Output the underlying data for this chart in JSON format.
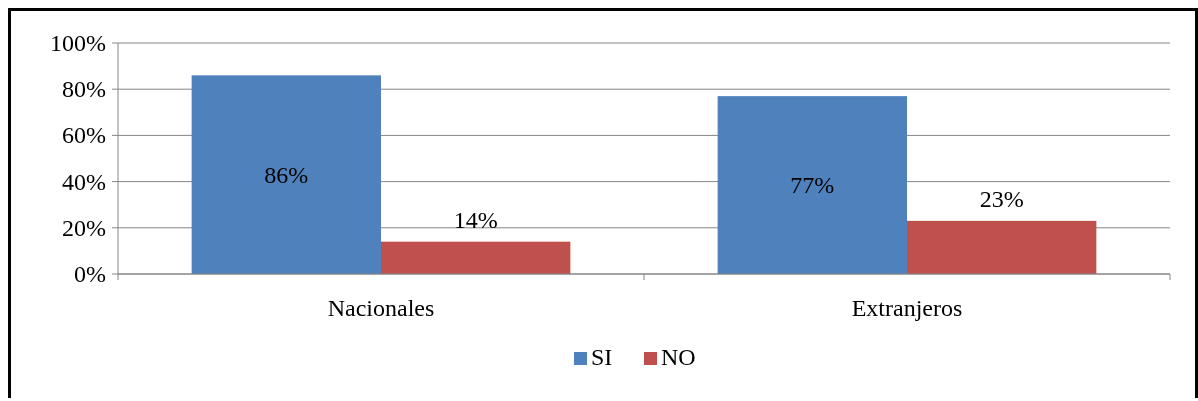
{
  "chart_data": {
    "type": "bar",
    "categories": [
      "Nacionales",
      "Extranjeros"
    ],
    "series": [
      {
        "name": "SI",
        "color": "#4f81bd",
        "values": [
          86,
          77
        ],
        "value_labels": [
          "86%",
          "77%"
        ]
      },
      {
        "name": "NO",
        "color": "#c0504d",
        "values": [
          14,
          23
        ],
        "value_labels": [
          "14%",
          "23%"
        ]
      }
    ],
    "ylim": [
      0,
      100
    ],
    "yticks": [
      {
        "value": 0,
        "label": "0%"
      },
      {
        "value": 20,
        "label": "20%"
      },
      {
        "value": 40,
        "label": "40%"
      },
      {
        "value": 60,
        "label": "60%"
      },
      {
        "value": 80,
        "label": "80%"
      },
      {
        "value": 100,
        "label": "100%"
      }
    ],
    "grid": "y",
    "legend": "bottom"
  }
}
